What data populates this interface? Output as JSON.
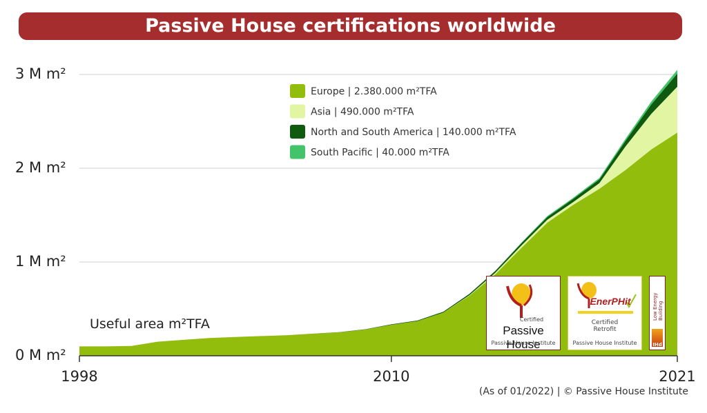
{
  "title": "Passive House certifications worldwide",
  "credit": "(As of 01/2022)  |  © Passive House Institute",
  "colors": {
    "title_bg": "#a52d2d",
    "europe": "#93bd0c",
    "asia": "#e2f5a2",
    "americas": "#0f5a0f",
    "south_pacific": "#43c46a"
  },
  "chart_data": {
    "type": "area",
    "stacked": true,
    "x": [
      1998,
      1999,
      2000,
      2001,
      2002,
      2003,
      2004,
      2005,
      2006,
      2007,
      2008,
      2009,
      2010,
      2011,
      2012,
      2013,
      2014,
      2015,
      2016,
      2017,
      2018,
      2019,
      2020,
      2021
    ],
    "series": [
      {
        "name": "Europe | 2.380.000 m²TFA",
        "key": "europe",
        "values": [
          100000,
          100000,
          105000,
          150000,
          170000,
          190000,
          200000,
          210000,
          220000,
          235000,
          250000,
          280000,
          330000,
          370000,
          460000,
          640000,
          870000,
          1150000,
          1420000,
          1610000,
          1780000,
          1980000,
          2200000,
          2380000
        ]
      },
      {
        "name": "Asia | 490.000 m²TFA",
        "key": "asia",
        "values": [
          0,
          0,
          0,
          0,
          0,
          0,
          0,
          0,
          0,
          0,
          0,
          0,
          0,
          0,
          0,
          5000,
          15000,
          25000,
          30000,
          30000,
          60000,
          250000,
          380000,
          490000
        ]
      },
      {
        "name": "North and South America | 140.000 m²TFA",
        "key": "americas",
        "values": [
          0,
          0,
          0,
          0,
          0,
          0,
          0,
          0,
          0,
          1000,
          2000,
          3000,
          5000,
          6000,
          10000,
          15000,
          20000,
          25000,
          30000,
          35000,
          40000,
          60000,
          100000,
          140000
        ]
      },
      {
        "name": "South Pacific | 40.000 m²TFA",
        "key": "south_pacific",
        "values": [
          0,
          0,
          0,
          0,
          0,
          0,
          0,
          0,
          0,
          0,
          0,
          0,
          0,
          0,
          0,
          0,
          0,
          5000,
          10000,
          10000,
          15000,
          20000,
          30000,
          40000
        ]
      }
    ],
    "ylim": [
      0,
      3000000
    ],
    "y_ticks": [
      0,
      1000000,
      2000000,
      3000000
    ],
    "y_tick_labels": [
      "0 M m²",
      "1 M m²",
      "2 M m²",
      "3 M m²"
    ],
    "x_ticks": [
      1998,
      2010,
      2021
    ],
    "x_tick_labels": [
      "1998",
      "2010",
      "2021"
    ],
    "xlim": [
      1998,
      2021
    ],
    "annotation": "Useful area m²TFA",
    "grid": true,
    "legend_position": "top-center"
  },
  "logos": {
    "passive_house": {
      "label_small": "Certified",
      "label_big": "Passive House",
      "label_sub": "Passive House Institute"
    },
    "enerphit": {
      "label_brand": "EnerPHit",
      "label_mid": "Certified Retrofit",
      "label_sub": "Passive House Institute"
    },
    "low_energy": {
      "label_vertical": "Low Energy Building",
      "label_bottom": "IHd"
    }
  }
}
